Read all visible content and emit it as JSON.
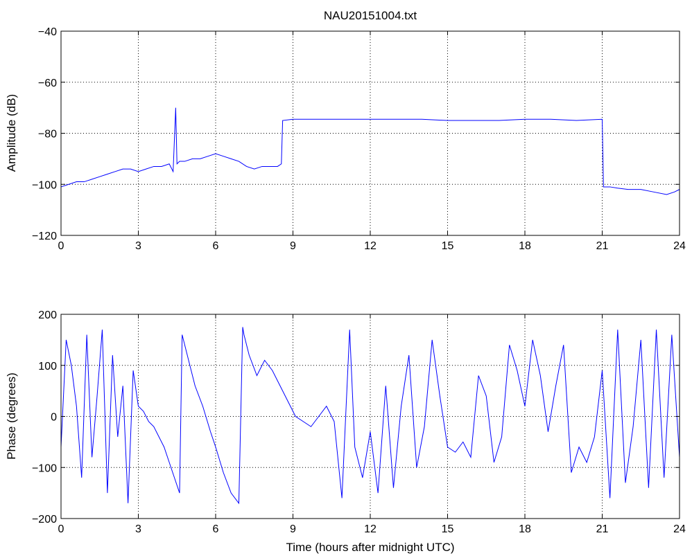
{
  "chart_data": [
    {
      "type": "line",
      "title": "NAU20151004.txt",
      "xlabel": "",
      "ylabel": "Amplitude (dB)",
      "xlim": [
        0,
        24
      ],
      "ylim": [
        -120,
        -40
      ],
      "xticks": [
        "0",
        "3",
        "6",
        "9",
        "12",
        "15",
        "18",
        "21",
        "24"
      ],
      "yticks": [
        "−40",
        "−60",
        "−80",
        "−100",
        "−120"
      ],
      "grid": true,
      "color": "#0000ff",
      "x": [
        0,
        0.3,
        0.6,
        0.9,
        1.2,
        1.5,
        1.8,
        2.1,
        2.4,
        2.7,
        3.0,
        3.3,
        3.6,
        3.9,
        4.2,
        4.35,
        4.45,
        4.5,
        4.6,
        4.8,
        5.1,
        5.4,
        5.7,
        6.0,
        6.3,
        6.6,
        6.9,
        7.2,
        7.5,
        7.8,
        8.1,
        8.4,
        8.55,
        8.6,
        9.0,
        10.0,
        11.0,
        12.0,
        13.0,
        14.0,
        15.0,
        16.0,
        17.0,
        18.0,
        19.0,
        20.0,
        21.0,
        21.05,
        21.3,
        21.6,
        22.0,
        22.5,
        23.0,
        23.5,
        23.8,
        24.0
      ],
      "y": [
        -101,
        -100,
        -99,
        -99,
        -98,
        -97,
        -96,
        -95,
        -94,
        -94,
        -95,
        -94,
        -93,
        -93,
        -92,
        -95,
        -70,
        -92,
        -91,
        -91,
        -90,
        -90,
        -89,
        -88,
        -89,
        -90,
        -91,
        -93,
        -94,
        -93,
        -93,
        -93,
        -92,
        -75,
        -74.5,
        -74.5,
        -74.5,
        -74.5,
        -74.5,
        -74.5,
        -75,
        -75,
        -75,
        -74.5,
        -74.5,
        -75,
        -74.5,
        -101,
        -101,
        -101.5,
        -102,
        -102,
        -103,
        -104,
        -103,
        -102
      ]
    },
    {
      "type": "line",
      "title": "",
      "xlabel": "Time (hours after midnight UTC)",
      "ylabel": "Phase (degrees)",
      "xlim": [
        0,
        24
      ],
      "ylim": [
        -200,
        200
      ],
      "xticks": [
        "0",
        "3",
        "6",
        "9",
        "12",
        "15",
        "18",
        "21",
        "24"
      ],
      "yticks": [
        "200",
        "100",
        "0",
        "−100",
        "−200"
      ],
      "grid": true,
      "color": "#0000ff",
      "x": [
        0,
        0.2,
        0.4,
        0.6,
        0.8,
        1.0,
        1.2,
        1.4,
        1.6,
        1.8,
        2.0,
        2.2,
        2.4,
        2.6,
        2.8,
        3.0,
        3.2,
        3.4,
        3.6,
        3.8,
        4.0,
        4.2,
        4.4,
        4.6,
        4.7,
        4.8,
        5.0,
        5.2,
        5.5,
        5.8,
        6.0,
        6.3,
        6.6,
        6.9,
        7.05,
        7.1,
        7.3,
        7.6,
        7.9,
        8.2,
        8.5,
        8.8,
        9.1,
        9.4,
        9.7,
        10.0,
        10.3,
        10.6,
        10.9,
        11.2,
        11.4,
        11.7,
        12.0,
        12.3,
        12.6,
        12.9,
        13.2,
        13.5,
        13.8,
        14.1,
        14.4,
        14.7,
        15.0,
        15.3,
        15.6,
        15.9,
        16.2,
        16.5,
        16.8,
        17.1,
        17.4,
        17.7,
        18.0,
        18.3,
        18.6,
        18.9,
        19.2,
        19.5,
        19.8,
        20.1,
        20.4,
        20.7,
        21.0,
        21.3,
        21.6,
        21.9,
        22.2,
        22.5,
        22.8,
        23.1,
        23.4,
        23.7,
        24.0
      ],
      "y": [
        -60,
        150,
        100,
        20,
        -120,
        160,
        -80,
        40,
        170,
        -150,
        120,
        -40,
        60,
        -170,
        90,
        20,
        10,
        -10,
        -20,
        -40,
        -60,
        -90,
        -120,
        -150,
        160,
        140,
        100,
        60,
        20,
        -30,
        -60,
        -110,
        -150,
        -170,
        175,
        160,
        120,
        80,
        110,
        90,
        60,
        30,
        0,
        -10,
        -20,
        0,
        20,
        -10,
        -160,
        170,
        -60,
        -120,
        -30,
        -150,
        60,
        -140,
        20,
        120,
        -100,
        -20,
        150,
        40,
        -60,
        -70,
        -50,
        -80,
        80,
        40,
        -90,
        -40,
        140,
        90,
        20,
        150,
        80,
        -30,
        60,
        140,
        -110,
        -60,
        -90,
        -40,
        90,
        -160,
        170,
        -130,
        -20,
        150,
        -140,
        170,
        -120,
        160,
        -80
      ]
    }
  ]
}
